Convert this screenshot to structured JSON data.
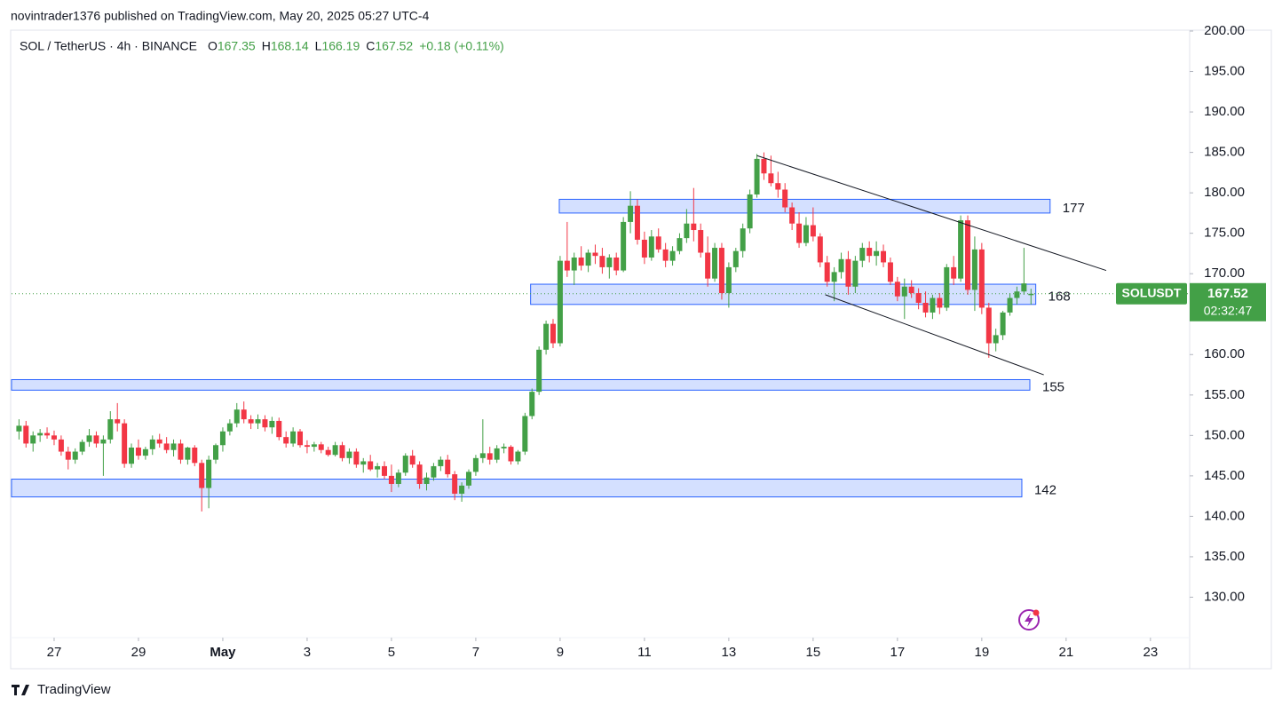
{
  "header": {
    "title": "novintrader1376 published on TradingView.com, May 20, 2025 05:27 UTC-4"
  },
  "chart_data": {
    "type": "candlestick",
    "symbol": "SOL / TetherUS · 4h · BINANCE",
    "legend": [
      {
        "label": "O",
        "value": "167.35"
      },
      {
        "label": "H",
        "value": "168.14"
      },
      {
        "label": "L",
        "value": "166.19"
      },
      {
        "label": "C",
        "value": "167.52"
      }
    ],
    "change": "+0.18 (+0.11%)",
    "up_color": "#43a047",
    "down_color": "#f23645",
    "x": [
      -0.833,
      -0.667,
      -0.5,
      -0.333,
      -0.167,
      0,
      0.167,
      0.333,
      0.5,
      0.667,
      0.833,
      1,
      1.167,
      1.333,
      1.5,
      1.667,
      1.833,
      2,
      2.167,
      2.333,
      2.5,
      2.667,
      2.833,
      3,
      3.167,
      3.333,
      3.5,
      3.667,
      3.833,
      4,
      4.167,
      4.333,
      4.5,
      4.667,
      4.833,
      5,
      5.167,
      5.333,
      5.5,
      5.667,
      5.833,
      6,
      6.167,
      6.333,
      6.5,
      6.667,
      6.833,
      7,
      7.167,
      7.333,
      7.5,
      7.667,
      7.833,
      8,
      8.167,
      8.333,
      8.5,
      8.667,
      8.833,
      9,
      9.167,
      9.333,
      9.5,
      9.667,
      9.833,
      10,
      10.167,
      10.333,
      10.5,
      10.667,
      10.833,
      11,
      11.167,
      11.333,
      11.5,
      11.667,
      11.833,
      12,
      12.167,
      12.333,
      12.5,
      12.667,
      12.833,
      13,
      13.167,
      13.333,
      13.5,
      13.667,
      13.833,
      14,
      14.167,
      14.333,
      14.5,
      14.667,
      14.833,
      15,
      15.167,
      15.333,
      15.5,
      15.667,
      15.833,
      16,
      16.167,
      16.333,
      16.5,
      16.667,
      16.833,
      17,
      17.167,
      17.333,
      17.5,
      17.667,
      17.833,
      18,
      18.167,
      18.333,
      18.5,
      18.667,
      18.833,
      19,
      19.167,
      19.333,
      19.5,
      19.667,
      19.833,
      20,
      20.167,
      20.333,
      20.5,
      20.667,
      20.833,
      21,
      21.167,
      21.333,
      21.5,
      21.667,
      21.833,
      22,
      22.167,
      22.333,
      22.5,
      22.667,
      22.833,
      23,
      23.167
    ],
    "ohlc": [
      [
        150.5,
        152,
        149.5,
        151.2
      ],
      [
        151.2,
        151.8,
        148.5,
        149
      ],
      [
        149,
        150.5,
        148,
        150
      ],
      [
        150,
        150.8,
        149.2,
        150.3
      ],
      [
        150.3,
        151,
        149.6,
        150
      ],
      [
        150,
        150.6,
        148.8,
        149.5
      ],
      [
        149.5,
        150,
        147.5,
        148
      ],
      [
        148,
        148.6,
        145.8,
        147
      ],
      [
        147,
        148.4,
        146.5,
        148
      ],
      [
        148,
        149.5,
        147.6,
        149.2
      ],
      [
        149.2,
        150.8,
        148.6,
        150
      ],
      [
        150,
        150.5,
        148.5,
        149
      ],
      [
        149,
        150,
        145,
        149.5
      ],
      [
        149.5,
        153,
        149,
        152
      ],
      [
        152,
        154,
        150.5,
        151.5
      ],
      [
        151.5,
        152,
        146,
        146.5
      ],
      [
        146.5,
        149,
        146,
        148.5
      ],
      [
        148.5,
        149.5,
        147,
        147.5
      ],
      [
        147.5,
        148.6,
        147,
        148.3
      ],
      [
        148.3,
        150,
        147.6,
        149.5
      ],
      [
        149.5,
        150.2,
        148.5,
        149
      ],
      [
        149,
        149.8,
        147.8,
        148.2
      ],
      [
        148.2,
        149.5,
        147.4,
        149
      ],
      [
        149,
        149.5,
        146.5,
        147
      ],
      [
        147,
        148.6,
        146.4,
        148.5
      ],
      [
        148.5,
        148.8,
        146.2,
        146.6
      ],
      [
        146.6,
        147,
        140.6,
        143.5
      ],
      [
        143.5,
        147.5,
        141,
        147
      ],
      [
        147,
        149,
        146.5,
        148.8
      ],
      [
        148.8,
        151,
        148,
        150.5
      ],
      [
        150.5,
        152,
        150,
        151.5
      ],
      [
        151.5,
        154,
        151,
        153.2
      ],
      [
        153.2,
        154.2,
        151.5,
        152
      ],
      [
        152,
        152.5,
        150.8,
        151.5
      ],
      [
        151.5,
        152.6,
        150.8,
        152
      ],
      [
        152,
        152.5,
        150.5,
        151
      ],
      [
        151,
        152.3,
        150.2,
        151.8
      ],
      [
        151.8,
        152.2,
        149.4,
        149.8
      ],
      [
        149.8,
        150.5,
        148.5,
        149
      ],
      [
        149,
        151,
        148.6,
        150.5
      ],
      [
        150.5,
        150.8,
        148.5,
        148.8
      ],
      [
        148.8,
        149.4,
        147.8,
        148.6
      ],
      [
        148.6,
        149.2,
        148,
        148.9
      ],
      [
        148.9,
        149.2,
        147.8,
        148.2
      ],
      [
        148.2,
        148.6,
        147.4,
        147.6
      ],
      [
        147.6,
        149.2,
        147.4,
        148.8
      ],
      [
        148.8,
        149.2,
        146.8,
        147.2
      ],
      [
        147.2,
        148.4,
        146.5,
        148
      ],
      [
        148,
        148.4,
        146,
        146.4
      ],
      [
        146.4,
        147.2,
        145.4,
        146.8
      ],
      [
        146.8,
        147.6,
        145.6,
        145.8
      ],
      [
        145.8,
        146.6,
        144.8,
        146.2
      ],
      [
        146.2,
        146.8,
        144.6,
        145
      ],
      [
        145,
        146.4,
        143,
        144
      ],
      [
        144,
        145.8,
        143.6,
        145.4
      ],
      [
        145.4,
        147.8,
        145,
        147.5
      ],
      [
        147.5,
        148.2,
        146,
        146.4
      ],
      [
        146.4,
        146.8,
        143.4,
        144
      ],
      [
        144,
        145.4,
        143.2,
        144.8
      ],
      [
        144.8,
        146.6,
        144.4,
        146.2
      ],
      [
        146.2,
        147.4,
        145.6,
        147
      ],
      [
        147,
        147.6,
        144.8,
        145.2
      ],
      [
        145.2,
        145.6,
        142,
        142.8
      ],
      [
        142.8,
        144.2,
        141.8,
        143.8
      ],
      [
        143.8,
        145.8,
        143.4,
        145.5
      ],
      [
        145.5,
        147.6,
        145,
        147.2
      ],
      [
        147.2,
        152,
        146.6,
        147.8
      ],
      [
        147.8,
        148.6,
        146.4,
        147
      ],
      [
        147,
        148.8,
        146.6,
        148.4
      ],
      [
        148.4,
        149,
        147.8,
        148.6
      ],
      [
        148.6,
        148.8,
        146.4,
        146.8
      ],
      [
        146.8,
        148.2,
        146.4,
        148
      ],
      [
        148,
        152.8,
        147.6,
        152.4
      ],
      [
        152.4,
        155.8,
        152,
        155.4
      ],
      [
        155.4,
        161,
        155,
        160.6
      ],
      [
        160.6,
        164.2,
        160,
        163.8
      ],
      [
        163.8,
        164.4,
        160.8,
        161.4
      ],
      [
        161.4,
        172.2,
        161,
        171.6
      ],
      [
        171.6,
        176.4,
        169.6,
        170.4
      ],
      [
        170.4,
        172.6,
        168.6,
        172
      ],
      [
        172,
        173.4,
        170.4,
        171
      ],
      [
        171,
        173,
        170.2,
        172.6
      ],
      [
        172.6,
        173.6,
        171.2,
        172.2
      ],
      [
        172.2,
        173.2,
        170,
        170.8
      ],
      [
        170.8,
        172.4,
        169.4,
        172
      ],
      [
        172,
        172.6,
        169.8,
        170.4
      ],
      [
        170.4,
        177,
        170.2,
        176.4
      ],
      [
        176.4,
        180.2,
        175,
        178.4
      ],
      [
        178.4,
        179.2,
        173.6,
        174.2
      ],
      [
        174.2,
        175.2,
        171.2,
        172
      ],
      [
        172,
        175.4,
        171.6,
        174.6
      ],
      [
        174.6,
        175.6,
        172.6,
        173
      ],
      [
        173,
        173.8,
        170.8,
        171.6
      ],
      [
        171.6,
        173.4,
        171,
        172.8
      ],
      [
        172.8,
        175,
        172.4,
        174.4
      ],
      [
        174.4,
        178,
        173.8,
        176.2
      ],
      [
        176.2,
        180.6,
        174,
        175.4
      ],
      [
        175.4,
        176.2,
        172,
        172.6
      ],
      [
        172.6,
        174.6,
        168.4,
        169.4
      ],
      [
        169.4,
        173.8,
        169,
        173.2
      ],
      [
        173.2,
        173.8,
        166.8,
        167.6
      ],
      [
        167.6,
        171.4,
        165.8,
        170.8
      ],
      [
        170.8,
        173.2,
        170.2,
        172.8
      ],
      [
        172.8,
        176.2,
        172,
        175.6
      ],
      [
        175.6,
        180.4,
        175,
        179.8
      ],
      [
        179.8,
        184.8,
        179.4,
        184.2
      ],
      [
        184.2,
        185,
        181.6,
        182.4
      ],
      [
        182.4,
        184.6,
        180.8,
        181.2
      ],
      [
        181.2,
        182.6,
        179.4,
        180.4
      ],
      [
        180.4,
        181.2,
        177.6,
        178.2
      ],
      [
        178.2,
        178.8,
        175.4,
        176.2
      ],
      [
        176.2,
        177.6,
        173.2,
        173.8
      ],
      [
        173.8,
        177,
        173.4,
        176
      ],
      [
        176,
        178.2,
        174,
        174.6
      ],
      [
        174.6,
        175,
        170.8,
        171.4
      ],
      [
        171.4,
        172.2,
        168.4,
        169
      ],
      [
        169,
        170.8,
        166.6,
        170.2
      ],
      [
        170.2,
        172.6,
        169.4,
        171.8
      ],
      [
        171.8,
        172.8,
        167.4,
        168.4
      ],
      [
        168.4,
        172.2,
        167.6,
        171.6
      ],
      [
        171.6,
        173.8,
        170.8,
        173.2
      ],
      [
        173.2,
        174,
        171.4,
        172.2
      ],
      [
        172.2,
        174,
        171,
        172.8
      ],
      [
        172.8,
        173.6,
        170.8,
        171.4
      ],
      [
        171.4,
        172,
        168.6,
        169
      ],
      [
        169,
        169.6,
        166.6,
        167.2
      ],
      [
        167.2,
        169.4,
        164.4,
        168.4
      ],
      [
        168.4,
        169.2,
        167,
        167.6
      ],
      [
        167.6,
        168.2,
        165.6,
        166.4
      ],
      [
        166.4,
        167.8,
        164.6,
        165.2
      ],
      [
        165.2,
        167.4,
        164.4,
        167
      ],
      [
        167,
        167.6,
        165,
        165.8
      ],
      [
        165.8,
        171.2,
        165.4,
        170.8
      ],
      [
        170.8,
        172.2,
        168.6,
        169.4
      ],
      [
        169.4,
        177.2,
        169,
        176.6
      ],
      [
        176.6,
        177.2,
        167.4,
        168
      ],
      [
        168,
        174.6,
        165.4,
        173
      ],
      [
        173,
        173.8,
        165,
        165.8
      ],
      [
        165.8,
        166.4,
        159.6,
        161.4
      ],
      [
        161.4,
        163.2,
        160.4,
        162.4
      ],
      [
        162.4,
        165.4,
        161.8,
        165.2
      ],
      [
        165.2,
        167.6,
        164.8,
        167
      ],
      [
        167,
        168.4,
        166.2,
        167.8
      ],
      [
        167.8,
        173.2,
        167.4,
        168.8
      ],
      [
        167.35,
        168.14,
        166.19,
        167.52
      ]
    ],
    "xlim": [
      -1.01,
      26.93
    ],
    "xticks": [
      {
        "value": 0,
        "label": "27"
      },
      {
        "value": 2,
        "label": "29"
      },
      {
        "value": 4,
        "label": "May"
      },
      {
        "value": 6,
        "label": "3"
      },
      {
        "value": 8,
        "label": "5"
      },
      {
        "value": 10,
        "label": "7"
      },
      {
        "value": 12,
        "label": "9"
      },
      {
        "value": 14,
        "label": "11"
      },
      {
        "value": 16,
        "label": "13"
      },
      {
        "value": 18,
        "label": "15"
      },
      {
        "value": 20,
        "label": "17"
      },
      {
        "value": 22,
        "label": "19"
      },
      {
        "value": 24,
        "label": "21"
      },
      {
        "value": 26,
        "label": "23"
      }
    ],
    "ylim": [
      125,
      200
    ],
    "yticks": [
      {
        "value": 130,
        "label": "130.00"
      },
      {
        "value": 135,
        "label": "135.00"
      },
      {
        "value": 140,
        "label": "140.00"
      },
      {
        "value": 145,
        "label": "145.00"
      },
      {
        "value": 150,
        "label": "150.00"
      },
      {
        "value": 155,
        "label": "155.00"
      },
      {
        "value": 160,
        "label": "160.00"
      },
      {
        "value": 165,
        "label": "165.00"
      },
      {
        "value": 170,
        "label": "170.00"
      },
      {
        "value": 175,
        "label": "175.00"
      },
      {
        "value": 180,
        "label": "180.00"
      },
      {
        "value": 185,
        "label": "185.00"
      },
      {
        "value": 190,
        "label": "190.00"
      },
      {
        "value": 195,
        "label": "195.00"
      },
      {
        "value": 200,
        "label": "200.00"
      }
    ],
    "zones": [
      {
        "label": "177",
        "low": 177.5,
        "high": 179.2,
        "x": [
          11.98,
          23.62
        ]
      },
      {
        "label": "168",
        "low": 166.2,
        "high": 168.7,
        "x": [
          11.3,
          23.28
        ]
      },
      {
        "label": "155",
        "low": 155.6,
        "high": 156.9,
        "x": [
          -1.01,
          23.14
        ]
      },
      {
        "label": "142",
        "low": 142.4,
        "high": 144.6,
        "x": [
          -1.01,
          22.95
        ]
      }
    ],
    "zone_color": "#2962ff",
    "lines": [
      {
        "x": [
          16.67,
          24.95
        ],
        "y": [
          184.6,
          170.4
        ]
      },
      {
        "x": [
          18.29,
          23.47
        ],
        "y": [
          167.4,
          157.5
        ]
      }
    ],
    "last_price": {
      "name": "SOLUSDT",
      "value": 167.52,
      "countdown": "02:32:47"
    }
  },
  "footer": {
    "brand": "TradingView"
  }
}
